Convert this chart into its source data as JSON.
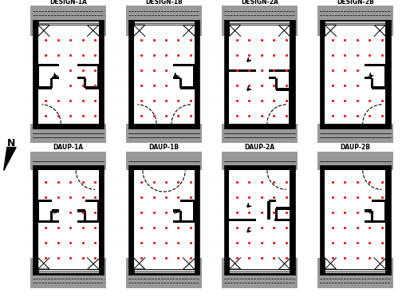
{
  "titles_row1": [
    "DESIGN-1A",
    "DESIGN-1B",
    "DESIGN-2A",
    "DESIGN-2B"
  ],
  "titles_row2": [
    "DAUP-1A",
    "DAUP-1B",
    "DAUP-2A",
    "DAUP-2B"
  ],
  "figsize": [
    5.1,
    3.72
  ],
  "dpi": 100
}
